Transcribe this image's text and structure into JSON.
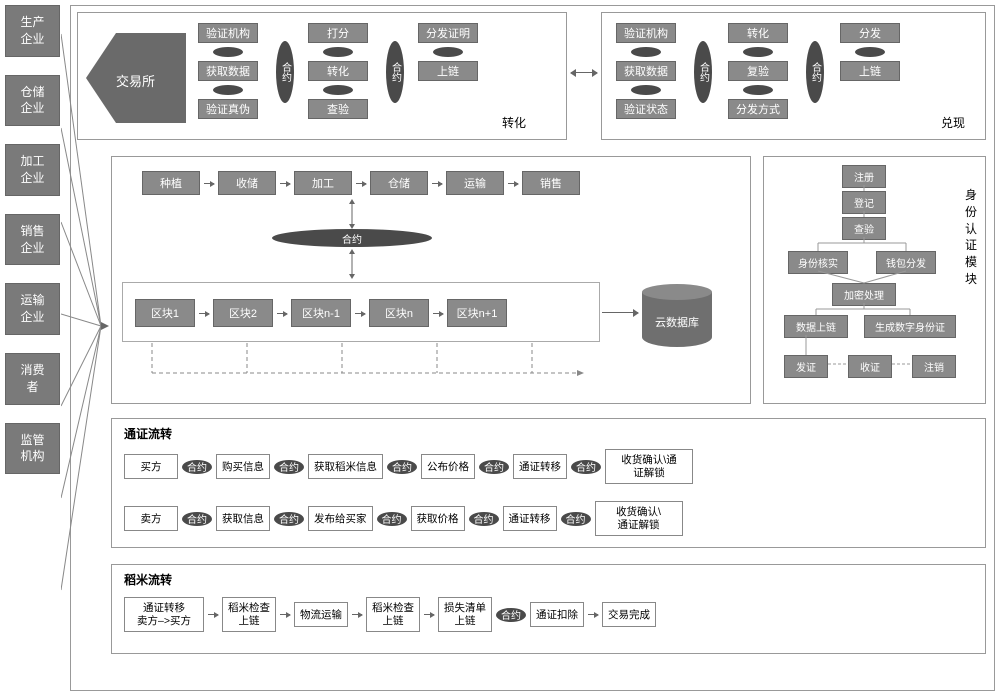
{
  "sidebar": [
    "生产\n企业",
    "仓储\n企业",
    "加工\n企业",
    "销售\n企业",
    "运输\n企业",
    "消费\n者",
    "监管\n机构"
  ],
  "exchange": "交易所",
  "contract": "合约",
  "top_left_panel": {
    "label": "转化",
    "cols": [
      [
        "验证机构",
        "获取数据",
        "验证真伪"
      ],
      [
        "打分",
        "转化",
        "查验"
      ],
      [
        "分发证明",
        "上链"
      ]
    ]
  },
  "top_right_panel": {
    "label": "兑现",
    "cols": [
      [
        "验证机构",
        "获取数据",
        "验证状态"
      ],
      [
        "转化",
        "复验",
        "分发方式"
      ],
      [
        "分发",
        "上链"
      ]
    ]
  },
  "supply_chain": [
    "种植",
    "收储",
    "加工",
    "仓储",
    "运输",
    "销售"
  ],
  "blocks": [
    "区块1",
    "区块2",
    "区块n-1",
    "区块n",
    "区块n+1"
  ],
  "cloud_db": "云数据库",
  "identity": {
    "title": "身份\n认证\n模块",
    "nodes": {
      "reg": "注册",
      "login": "登记",
      "check": "查验",
      "verify": "身份核实",
      "wallet": "钱包分发",
      "encrypt": "加密处理",
      "onchain": "数据上链",
      "genid": "生成数字身份证",
      "issue": "发证",
      "receive": "收证",
      "revoke": "注销"
    }
  },
  "token_flow_title": "通证流转",
  "token_flow_buyer": [
    "买方",
    "购买信息",
    "获取稻米信息",
    "公布价格",
    "通证转移",
    "收货确认\\通\n证解锁"
  ],
  "token_flow_seller": [
    "卖方",
    "获取信息",
    "发布给买家",
    "获取价格",
    "通证转移",
    "收货确认\\\n通证解锁"
  ],
  "rice_flow_title": "稻米流转",
  "rice_flow": [
    "通证转移\n卖方–>买方",
    "稻米检查\n上链",
    "物流运输",
    "稻米检查\n上链",
    "损失清单\n上链",
    "通证扣除",
    "交易完成"
  ],
  "colors": {
    "box_grey": "#8a8a8a",
    "text_white": "#ffffff",
    "border": "#999999",
    "ellipse": "#4a4a4a",
    "line": "#666666",
    "bg": "#ffffff"
  }
}
